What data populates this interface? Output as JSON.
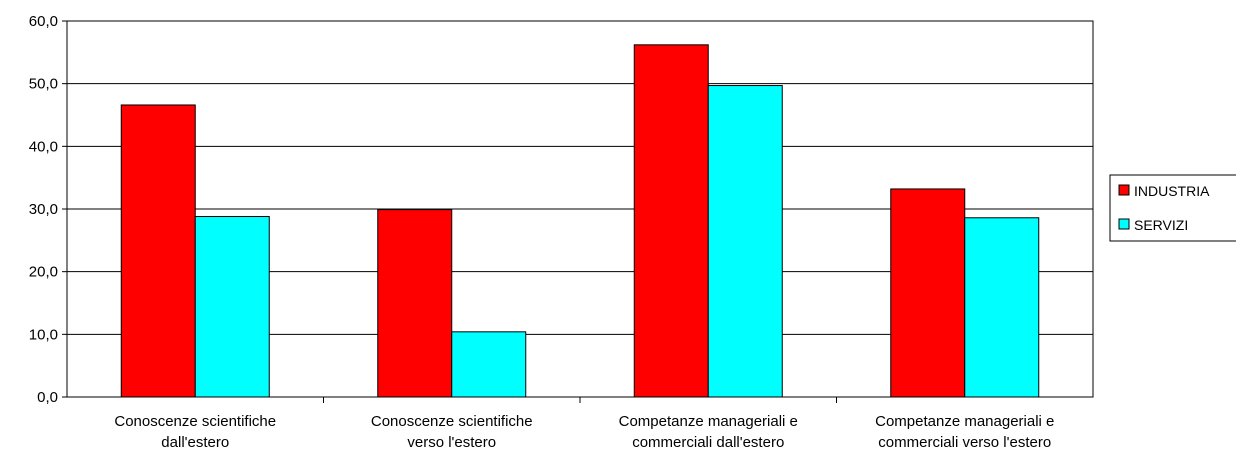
{
  "chart_data": {
    "type": "bar",
    "categories": [
      [
        "Conoscenze scientifiche",
        "dall'estero"
      ],
      [
        "Conoscenze scientifiche",
        "verso l'estero"
      ],
      [
        "Competanze manageriali e",
        "commerciali dall'estero"
      ],
      [
        "Competanze manageriali e",
        "commerciali verso l'estero"
      ]
    ],
    "series": [
      {
        "name": "INDUSTRIA",
        "color": "#ff0000",
        "values": [
          46.6,
          29.9,
          56.2,
          33.2
        ]
      },
      {
        "name": "SERVIZI",
        "color": "#00ffff",
        "values": [
          28.8,
          10.4,
          49.7,
          28.6
        ]
      }
    ],
    "ylim": [
      0,
      60
    ],
    "yticks": [
      "0,0",
      "10,0",
      "20,0",
      "30,0",
      "40,0",
      "50,0",
      "60,0"
    ],
    "grid": true,
    "legend_position": "right",
    "title": "",
    "xlabel": "",
    "ylabel": ""
  }
}
